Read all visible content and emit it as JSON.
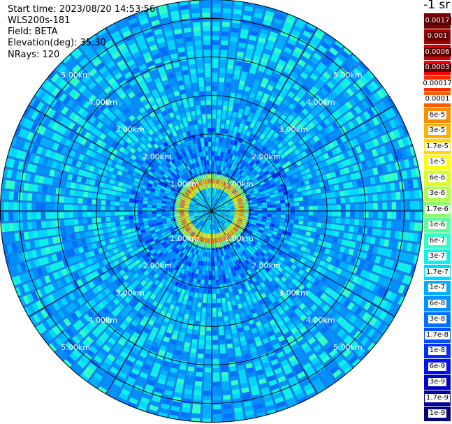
{
  "header": {
    "start_time": "Start time: 2023/08/20 14:53:56",
    "device": "WLS200s-181",
    "field": "Field: BETA",
    "elevation": "Elevation(deg): 35.30",
    "nrays": "NRays: 120",
    "units": "-1 sr"
  },
  "chart_data": {
    "type": "heatmap",
    "subtype": "polar-ppi",
    "field": "BETA",
    "units": "sr-1",
    "elevation_deg": 35.3,
    "n_rays": 120,
    "range_rings_km": [
      1.0,
      2.0,
      3.0,
      4.0,
      5.0
    ],
    "range_ring_labels": [
      "1.00km",
      "2.00km",
      "3.00km",
      "4.00km",
      "5.00km"
    ],
    "max_range_km": 5.5,
    "scale": "log",
    "color_range": [
      1e-09,
      0.0017
    ],
    "colorbar": [
      {
        "label": "0.0017",
        "color": "#7a0000"
      },
      {
        "label": "0.001",
        "color": "#a80000"
      },
      {
        "label": "0.0006",
        "color": "#d40000"
      },
      {
        "label": "0.0003",
        "color": "#ff0000"
      },
      {
        "label": "0.00017",
        "color": "#ff2a00"
      },
      {
        "label": "0.0001",
        "color": "#ff5a00"
      },
      {
        "label": "6e-5",
        "color": "#ff8a00"
      },
      {
        "label": "3e-5",
        "color": "#ffb000"
      },
      {
        "label": "1.7e-5",
        "color": "#ffd800"
      },
      {
        "label": "1e-5",
        "color": "#ffff00"
      },
      {
        "label": "6e-6",
        "color": "#d8ff20"
      },
      {
        "label": "3e-6",
        "color": "#b0ff48"
      },
      {
        "label": "1.7e-6",
        "color": "#8aff6e"
      },
      {
        "label": "1e-6",
        "color": "#5aff9e"
      },
      {
        "label": "6e-7",
        "color": "#30ffc8"
      },
      {
        "label": "3e-7",
        "color": "#10f0e8"
      },
      {
        "label": "1.7e-7",
        "color": "#00d8ff"
      },
      {
        "label": "1e-7",
        "color": "#00b0ff"
      },
      {
        "label": "6e-8",
        "color": "#0090ff"
      },
      {
        "label": "3e-8",
        "color": "#0070ff"
      },
      {
        "label": "1.7e-8",
        "color": "#0050ff"
      },
      {
        "label": "1e-8",
        "color": "#0030ff"
      },
      {
        "label": "6e-9",
        "color": "#0010f0"
      },
      {
        "label": "3e-9",
        "color": "#0000c8"
      },
      {
        "label": "1.7e-9",
        "color": "#0000a0"
      },
      {
        "label": "1e-9",
        "color": "#000078"
      }
    ],
    "grid": true,
    "observations": {
      "near_field_range_km": [
        0.0,
        0.6
      ],
      "near_field_level": "1e-7 to 1e-6",
      "aerosol_ring_range_km": [
        0.6,
        0.9
      ],
      "aerosol_ring_level": "1e-5 to 0.0001",
      "far_field_level": "1e-7 to 1e-6"
    }
  }
}
